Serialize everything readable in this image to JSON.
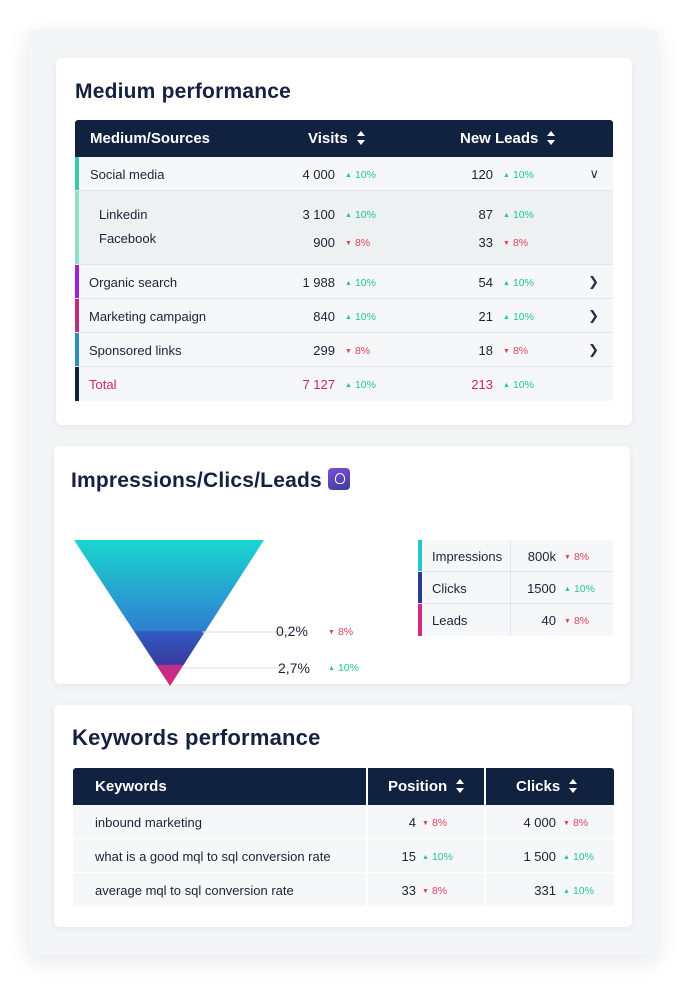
{
  "medium": {
    "title": "Medium performance",
    "headers": {
      "source": "Medium/Sources",
      "visits": "Visits",
      "leads": "New Leads"
    },
    "rows": [
      {
        "name": "Social media",
        "visits": "4 000",
        "visits_trend": "10%",
        "visits_dir": "up",
        "leads": "120",
        "leads_trend": "10%",
        "leads_dir": "up",
        "color": "#3cc9a9",
        "expanded": true
      },
      {
        "name": "Organic search",
        "visits": "1 988",
        "visits_trend": "10%",
        "visits_dir": "up",
        "leads": "54",
        "leads_trend": "10%",
        "leads_dir": "up",
        "color": "#a21fd8"
      },
      {
        "name": "Marketing campaign",
        "visits": "840",
        "visits_trend": "10%",
        "visits_dir": "up",
        "leads": "21",
        "leads_trend": "10%",
        "leads_dir": "up",
        "color": "#c22a7e"
      },
      {
        "name": "Sponsored links",
        "visits": "299",
        "visits_trend": "8%",
        "visits_dir": "down",
        "leads": "18",
        "leads_trend": "8%",
        "leads_dir": "down",
        "color": "#2b8fbf"
      }
    ],
    "sub": [
      {
        "name": "Linkedin",
        "visits": "3 100",
        "visits_trend": "10%",
        "leads": "87",
        "leads_trend": "10%"
      },
      {
        "name": "Facebook",
        "visits": "900",
        "visits_trend": "8%",
        "leads": "33",
        "leads_trend": "8%"
      }
    ],
    "total": {
      "name": "Total",
      "visits": "7 127",
      "visits_trend": "10%",
      "leads": "213",
      "leads_trend": "10%",
      "color": "#112240"
    }
  },
  "funnel": {
    "title": "Impressions/Clics/Leads",
    "ratios": [
      {
        "value": "0,2%",
        "trend": "8%",
        "dir": "down"
      },
      {
        "value": "2,7%",
        "trend": "10%",
        "dir": "up"
      }
    ],
    "legend": [
      {
        "label": "Impressions",
        "value": "800k",
        "trend": "8%",
        "dir": "down",
        "color": "#27c7c8"
      },
      {
        "label": "Clicks",
        "value": "1500",
        "trend": "10%",
        "dir": "up",
        "color": "#2a3a8c"
      },
      {
        "label": "Leads",
        "value": "40",
        "trend": "8%",
        "dir": "down",
        "color": "#d32a82"
      }
    ]
  },
  "keywords": {
    "title": "Keywords performance",
    "headers": {
      "keyword": "Keywords",
      "position": "Position",
      "clicks": "Clicks"
    },
    "rows": [
      {
        "keyword": "inbound marketing",
        "position": "4",
        "position_trend": "8%",
        "position_dir": "down",
        "clicks": "4 000",
        "clicks_trend": "8%",
        "clicks_dir": "down"
      },
      {
        "keyword": "what is a good mql to sql conversion rate",
        "position": "15",
        "position_trend": "10%",
        "position_dir": "up",
        "clicks": "1 500",
        "clicks_trend": "10%",
        "clicks_dir": "up"
      },
      {
        "keyword": "average mql to sql conversion rate",
        "position": "33",
        "position_trend": "8%",
        "position_dir": "down",
        "clicks": "331",
        "clicks_trend": "10%",
        "clicks_dir": "up"
      }
    ]
  }
}
